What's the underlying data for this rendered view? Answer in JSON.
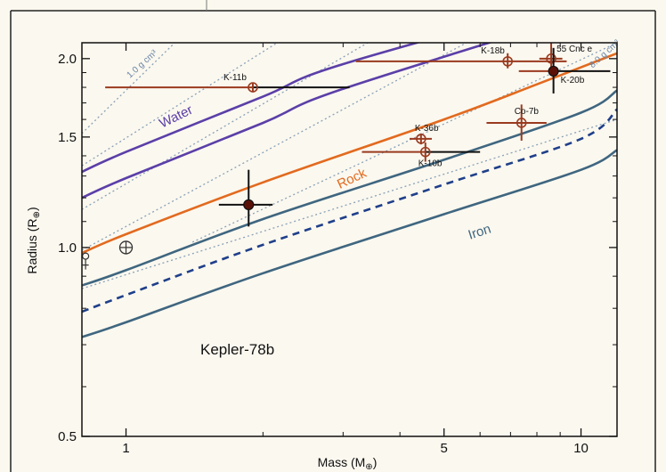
{
  "chart_data": {
    "type": "scatter",
    "title": "",
    "xlabel": "Mass (M",
    "xlabel_sub": "⊕",
    "xlabel_close": ")",
    "ylabel": "Radius (R",
    "ylabel_sub": "⊕",
    "ylabel_close": ")",
    "x_scale": "log",
    "y_scale": "log",
    "xlim": [
      0.8,
      12
    ],
    "ylim": [
      0.5,
      2.12
    ],
    "x_ticks": [
      1,
      5,
      10
    ],
    "x_tick_labels": [
      "1",
      "5",
      "10"
    ],
    "y_ticks": [
      0.5,
      1.0,
      1.5,
      2.0
    ],
    "y_tick_labels": [
      "0.5",
      "1.0",
      "1.5",
      "2.0"
    ],
    "grid": false,
    "annotation": "Kepler-78b",
    "composition_curves": [
      {
        "name": "Water",
        "color": "#5b3fa8",
        "dash": false,
        "x": [
          0.8,
          1,
          2,
          3,
          12
        ],
        "y": [
          1.32,
          1.42,
          1.74,
          1.96,
          2.6
        ]
      },
      {
        "name": "",
        "color": "#5b3fa8",
        "dash": false,
        "x": [
          0.8,
          1,
          2,
          3,
          12
        ],
        "y": [
          1.2,
          1.29,
          1.58,
          1.79,
          2.45
        ]
      },
      {
        "name": "Rock",
        "color": "#e26a1f",
        "dash": false,
        "x": [
          0.8,
          1,
          2,
          5,
          8,
          12
        ],
        "y": [
          0.98,
          1.05,
          1.27,
          1.6,
          1.82,
          2.04
        ]
      },
      {
        "name": "",
        "color": "#3f6680",
        "dash": false,
        "x": [
          0.8,
          1,
          2,
          5,
          10,
          12
        ],
        "y": [
          0.87,
          0.92,
          1.11,
          1.38,
          1.64,
          1.78
        ]
      },
      {
        "name": "",
        "color": "#1f3f8a",
        "dash": true,
        "x": [
          0.8,
          1,
          2,
          5,
          10,
          12
        ],
        "y": [
          0.79,
          0.84,
          1.01,
          1.26,
          1.49,
          1.66
        ]
      },
      {
        "name": "Iron",
        "color": "#3f6680",
        "dash": false,
        "x": [
          0.8,
          1,
          2,
          5,
          10,
          12
        ],
        "y": [
          0.72,
          0.76,
          0.91,
          1.13,
          1.33,
          1.43
        ]
      }
    ],
    "density_lines": [
      {
        "label": "1.0 g cm³",
        "x": [
          0.8,
          1.28
        ],
        "y": [
          1.52,
          2.12
        ]
      },
      {
        "label": "",
        "x": [
          0.8,
          2.15
        ],
        "y": [
          1.35,
          2.12
        ]
      },
      {
        "label": "",
        "x": [
          0.8,
          3.4
        ],
        "y": [
          1.15,
          2.12
        ]
      },
      {
        "label": "",
        "x": [
          0.8,
          5.6
        ],
        "y": [
          0.99,
          2.12
        ]
      },
      {
        "label": "",
        "x": [
          0.8,
          12
        ],
        "y": [
          0.86,
          1.6
        ]
      },
      {
        "label": "8.0 g cm³",
        "x": [
          1.4,
          12
        ],
        "y": [
          1.02,
          2.12
        ]
      }
    ],
    "planets": [
      {
        "name": "K-11b",
        "x": 1.9,
        "y": 1.8,
        "x_lo": 0.9,
        "x_hi": 3.1,
        "y_lo": 1.77,
        "y_hi": 1.83,
        "filled": false
      },
      {
        "name": "K-18b",
        "x": 6.9,
        "y": 1.98,
        "x_lo": 3.2,
        "x_hi": 9.3,
        "y_lo": 1.93,
        "y_hi": 2.04,
        "filled": false
      },
      {
        "name": "55 Cnc e",
        "x": 8.6,
        "y": 2.0,
        "x_lo": 8.1,
        "x_hi": 9.1,
        "y_lo": 1.93,
        "y_hi": 2.17,
        "filled": false
      },
      {
        "name": "K-20b",
        "x": 8.7,
        "y": 1.91,
        "x_lo": 7.3,
        "x_hi": 11.6,
        "y_lo": 1.76,
        "y_hi": 2.08,
        "filled": true
      },
      {
        "name": "K-36b",
        "x": 4.45,
        "y": 1.49,
        "x_lo": 4.2,
        "x_hi": 4.7,
        "y_lo": 1.46,
        "y_hi": 1.52,
        "filled": false
      },
      {
        "name": "K-10b",
        "x": 4.55,
        "y": 1.42,
        "x_lo": 3.3,
        "x_hi": 6.0,
        "y_lo": 1.37,
        "y_hi": 1.47,
        "filled": false
      },
      {
        "name": "Co-7b",
        "x": 7.4,
        "y": 1.58,
        "x_lo": 6.2,
        "x_hi": 8.4,
        "y_lo": 1.48,
        "y_hi": 1.69,
        "filled": false
      },
      {
        "name": "",
        "x": 1.86,
        "y": 1.17,
        "x_lo": 1.6,
        "x_hi": 2.1,
        "y_lo": 1.08,
        "y_hi": 1.33,
        "filled": true
      }
    ],
    "earth": {
      "x": 1.0,
      "y": 1.0,
      "symbol": "⊕"
    },
    "venus": {
      "x": 0.815,
      "y": 0.95,
      "symbol": "♀"
    }
  }
}
